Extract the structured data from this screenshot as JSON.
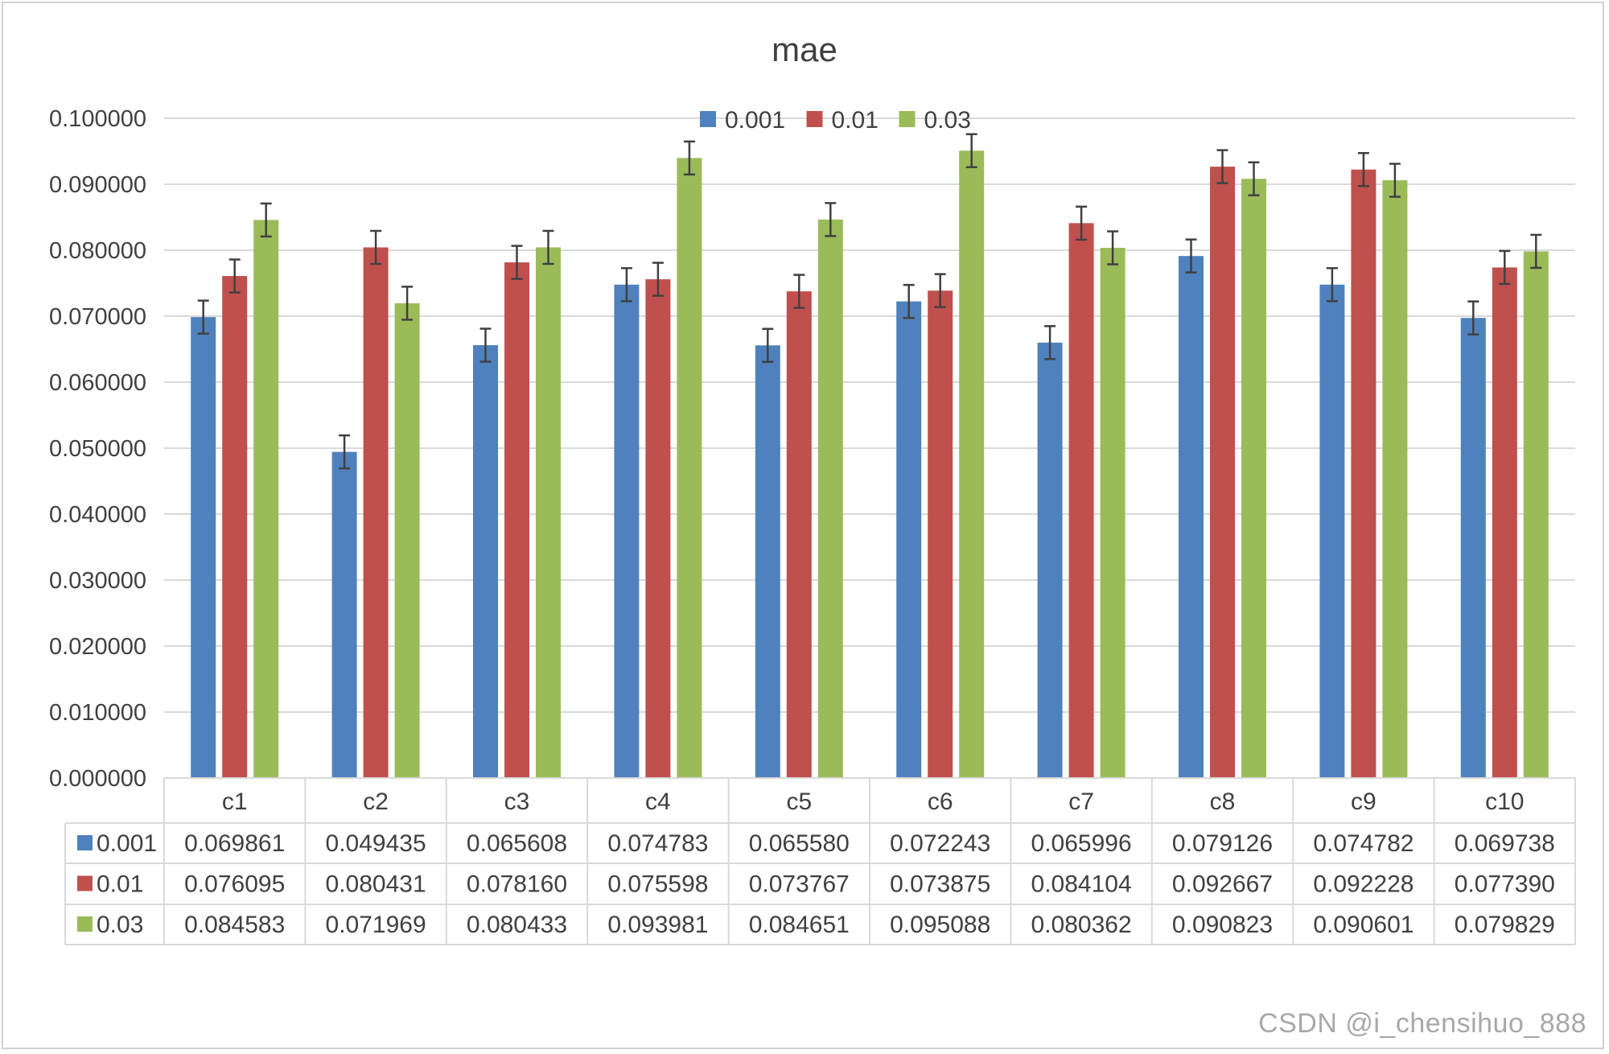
{
  "chart_data": {
    "type": "bar",
    "title": "mae",
    "xlabel": "",
    "ylabel": "",
    "ylim": [
      0,
      0.1
    ],
    "yticks": [
      "0.100000",
      "0.090000",
      "0.080000",
      "0.070000",
      "0.060000",
      "0.050000",
      "0.040000",
      "0.030000",
      "0.020000",
      "0.010000",
      "0.000000"
    ],
    "ytick_values": [
      0.1,
      0.09,
      0.08,
      0.07,
      0.06,
      0.05,
      0.04,
      0.03,
      0.02,
      0.01,
      0.0
    ],
    "categories": [
      "c1",
      "c2",
      "c3",
      "c4",
      "c5",
      "c6",
      "c7",
      "c8",
      "c9",
      "c10"
    ],
    "series": [
      {
        "name": "0.001",
        "color": "#4f81bd",
        "values": [
          0.069861,
          0.049435,
          0.065608,
          0.074783,
          0.06558,
          0.072243,
          0.065996,
          0.079126,
          0.074782,
          0.069738
        ],
        "labels": [
          "0.069861",
          "0.049435",
          "0.065608",
          "0.074783",
          "0.065580",
          "0.072243",
          "0.065996",
          "0.079126",
          "0.074782",
          "0.069738"
        ]
      },
      {
        "name": "0.01",
        "color": "#c0504d",
        "values": [
          0.076095,
          0.080431,
          0.07816,
          0.075598,
          0.073767,
          0.073875,
          0.084104,
          0.092667,
          0.092228,
          0.07739
        ],
        "labels": [
          "0.076095",
          "0.080431",
          "0.078160",
          "0.075598",
          "0.073767",
          "0.073875",
          "0.084104",
          "0.092667",
          "0.092228",
          "0.077390"
        ]
      },
      {
        "name": "0.03",
        "color": "#9bbb59",
        "values": [
          0.084583,
          0.071969,
          0.080433,
          0.093981,
          0.084651,
          0.095088,
          0.080362,
          0.090823,
          0.090601,
          0.079829
        ],
        "labels": [
          "0.084583",
          "0.071969",
          "0.080433",
          "0.093981",
          "0.084651",
          "0.095088",
          "0.080362",
          "0.090823",
          "0.090601",
          "0.079829"
        ]
      }
    ],
    "error_bar": 0.0025,
    "grid": true,
    "legend_position": "top",
    "data_table": true
  },
  "watermark": "CSDN @i_chensihuo_888"
}
